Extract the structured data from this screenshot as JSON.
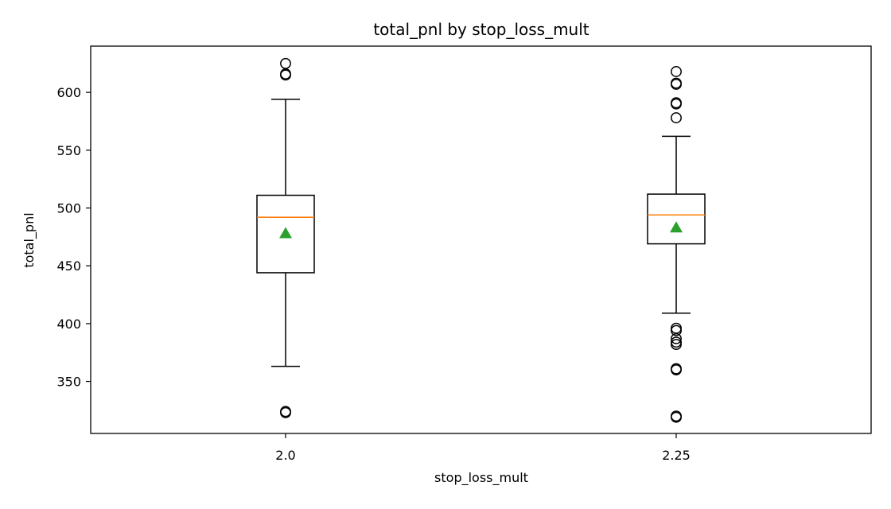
{
  "chart_data": {
    "type": "box",
    "title": "total_pnl by stop_loss_mult",
    "xlabel": "stop_loss_mult",
    "ylabel": "total_pnl",
    "ylim": [
      305,
      640
    ],
    "yticks": [
      350,
      400,
      450,
      500,
      550,
      600
    ],
    "grid": false,
    "categories": [
      "2.0",
      "2.25"
    ],
    "boxes": [
      {
        "category": "2.0",
        "whisker_low": 363,
        "q1": 444,
        "median": 492,
        "q3": 511,
        "whisker_high": 594,
        "mean": 478,
        "outliers": [
          323,
          324,
          615,
          616,
          625
        ]
      },
      {
        "category": "2.25",
        "whisker_low": 409,
        "q1": 469,
        "median": 494,
        "q3": 512,
        "whisker_high": 562,
        "mean": 483,
        "outliers": [
          319,
          320,
          360,
          361,
          382,
          384,
          387,
          394,
          396,
          578,
          590,
          591,
          607,
          608,
          618
        ]
      }
    ],
    "colors": {
      "box": "#000000",
      "median": "#ff7f0e",
      "mean": "#2ca02c",
      "outlier": "#000000"
    }
  }
}
